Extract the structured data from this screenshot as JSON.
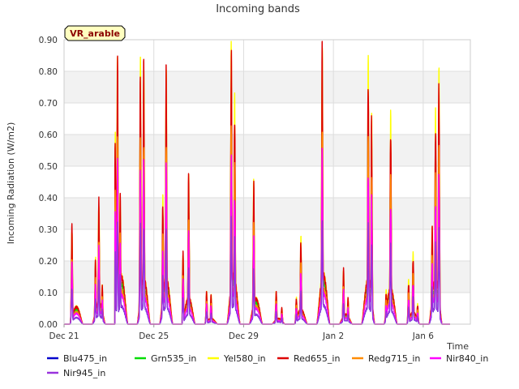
{
  "chart_data": {
    "type": "line",
    "title": "Incoming bands",
    "xlabel": "Time",
    "ylabel": "Incoming Radiation (W/m2)",
    "badge": "VR_arable",
    "x_unit": "days",
    "xlim": [
      0,
      18.1
    ],
    "ylim": [
      0,
      0.9
    ],
    "yticks": [
      "0.00",
      "0.10",
      "0.20",
      "0.30",
      "0.40",
      "0.50",
      "0.60",
      "0.70",
      "0.80",
      "0.90"
    ],
    "xticks": [
      {
        "value": 0,
        "label": "Dec 21"
      },
      {
        "value": 4,
        "label": "Dec 25"
      },
      {
        "value": 8,
        "label": "Dec 29"
      },
      {
        "value": 12,
        "label": "Jan 2"
      },
      {
        "value": 16,
        "label": "Jan 6"
      }
    ],
    "grid": true,
    "legend_placement": "bottom",
    "days": [
      {
        "day": 0,
        "subpeaks": [
          [
            0.35,
            0.3
          ]
        ]
      },
      {
        "day": 1,
        "subpeaks": [
          [
            0.4,
            0.2
          ],
          [
            0.55,
            0.38
          ],
          [
            0.7,
            0.12
          ]
        ]
      },
      {
        "day": 2,
        "subpeaks": [
          [
            0.28,
            0.57
          ],
          [
            0.38,
            0.82
          ],
          [
            0.5,
            0.4
          ]
        ]
      },
      {
        "day": 3,
        "subpeaks": [
          [
            0.4,
            0.79
          ],
          [
            0.55,
            0.8
          ]
        ]
      },
      {
        "day": 4,
        "subpeaks": [
          [
            0.4,
            0.38
          ],
          [
            0.55,
            0.79
          ]
        ]
      },
      {
        "day": 5,
        "subpeaks": [
          [
            0.3,
            0.22
          ],
          [
            0.55,
            0.46
          ]
        ]
      },
      {
        "day": 6,
        "subpeaks": [
          [
            0.35,
            0.1
          ],
          [
            0.55,
            0.09
          ]
        ]
      },
      {
        "day": 7,
        "subpeaks": [
          [
            0.45,
            0.85
          ],
          [
            0.6,
            0.67
          ]
        ]
      },
      {
        "day": 8,
        "subpeaks": [
          [
            0.45,
            0.44
          ]
        ]
      },
      {
        "day": 9,
        "subpeaks": [
          [
            0.45,
            0.1
          ],
          [
            0.7,
            0.05
          ]
        ]
      },
      {
        "day": 10,
        "subpeaks": [
          [
            0.35,
            0.08
          ],
          [
            0.55,
            0.26
          ]
        ]
      },
      {
        "day": 11,
        "subpeaks": [
          [
            0.5,
            0.86
          ]
        ]
      },
      {
        "day": 12,
        "subpeaks": [
          [
            0.45,
            0.17
          ],
          [
            0.65,
            0.08
          ]
        ]
      },
      {
        "day": 13,
        "subpeaks": [
          [
            0.4,
            0.06
          ],
          [
            0.55,
            0.78
          ],
          [
            0.7,
            0.64
          ]
        ]
      },
      {
        "day": 14,
        "subpeaks": [
          [
            0.35,
            0.1
          ],
          [
            0.55,
            0.62
          ]
        ]
      },
      {
        "day": 15,
        "subpeaks": [
          [
            0.35,
            0.13
          ],
          [
            0.55,
            0.21
          ],
          [
            0.75,
            0.06
          ]
        ]
      },
      {
        "day": 16,
        "subpeaks": [
          [
            0.4,
            0.3
          ],
          [
            0.55,
            0.63
          ],
          [
            0.7,
            0.76
          ]
        ]
      }
    ],
    "series": [
      {
        "name": "Blu475_in",
        "color": "#0000cc",
        "factor": 0.38
      },
      {
        "name": "Grn535_in",
        "color": "#00dd00",
        "factor": 0.86
      },
      {
        "name": "Yel580_in",
        "color": "#ffff00",
        "factor": 1.03
      },
      {
        "name": "Red655_in",
        "color": "#dd0000",
        "factor": 1.0
      },
      {
        "name": "Redg715_in",
        "color": "#ff8c00",
        "factor": 0.72
      },
      {
        "name": "Nir840_in",
        "color": "#ff00ff",
        "factor": 0.62
      },
      {
        "name": "Nir945_in",
        "color": "#9933dd",
        "factor": 0.39
      }
    ]
  }
}
